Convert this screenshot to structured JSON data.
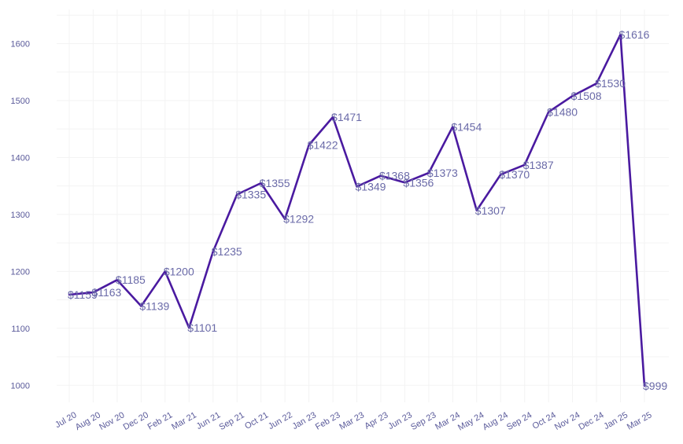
{
  "chart_data": {
    "type": "line",
    "title": "",
    "xlabel": "",
    "ylabel": "",
    "x": [
      "Jul 20",
      "Aug 20",
      "Nov 20",
      "Dec 20",
      "Feb 21",
      "Mar 21",
      "Jun 21",
      "Sep 21",
      "Oct 21",
      "Jun 22",
      "Jan 23",
      "Feb 23",
      "Mar 23",
      "Apr 23",
      "Jun 23",
      "Sep 23",
      "Mar 24",
      "May 24",
      "Aug 24",
      "Sep 24",
      "Oct 24",
      "Nov 24",
      "Dec 24",
      "Jan 25",
      "Mar 25"
    ],
    "series": [
      {
        "values": [
          1159,
          1163,
          1185,
          1139,
          1200,
          1101,
          1235,
          1335,
          1355,
          1292,
          1422,
          1471,
          1349,
          1368,
          1356,
          1373,
          1454,
          1307,
          1370,
          1387,
          1480,
          1508,
          1530,
          1616,
          999
        ],
        "labels": [
          "$1159",
          "$1163",
          "$1185",
          "$1139",
          "$1200",
          "$1101",
          "$1235",
          "$1335",
          "$1355",
          "$1292",
          "$1422",
          "$1471",
          "$1349",
          "$1368",
          "$1356",
          "$1373",
          "$1454",
          "$1307",
          "$1370",
          "$1387",
          "$1480",
          "$1508",
          "$1530",
          "$1616",
          "$999"
        ]
      }
    ],
    "yticks": [
      1000,
      1100,
      1200,
      1300,
      1400,
      1500,
      1600
    ],
    "ylim": [
      970,
      1660
    ],
    "grid": true,
    "line_color": "#4a1aa0"
  }
}
